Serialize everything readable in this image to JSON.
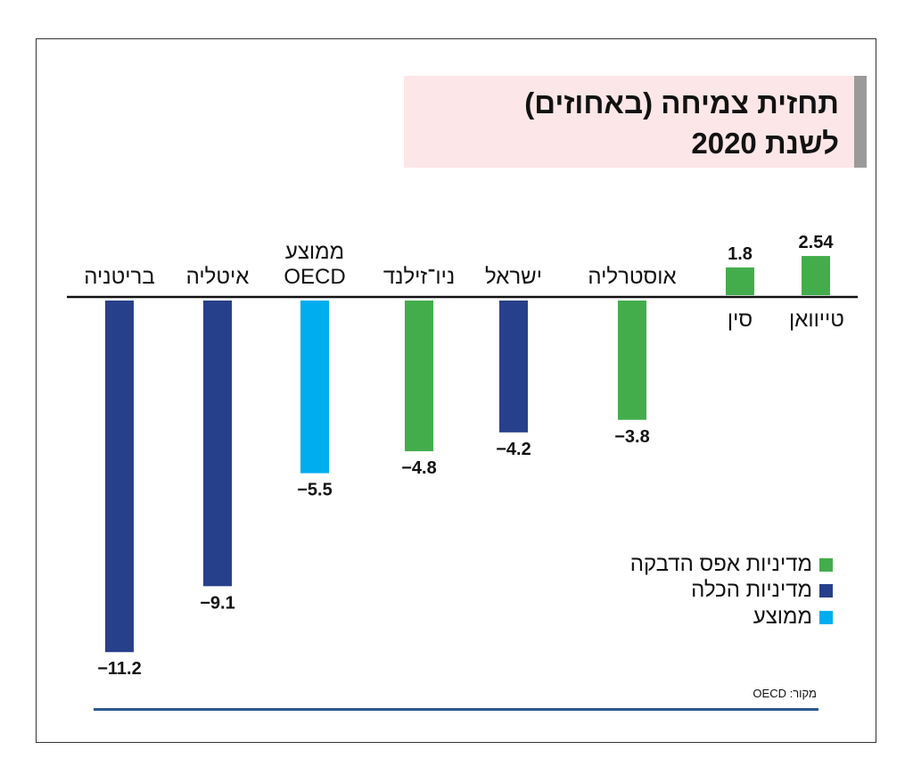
{
  "title": {
    "line1": "תחזית צמיחה (באחוזים)",
    "line2": "לשנת 2020"
  },
  "source": "מקור: OECD",
  "colors": {
    "zero_lockdown": "#43ad4b",
    "full_lockdown": "#27408b",
    "average": "#00aeef"
  },
  "legend": [
    {
      "label": "מדיניות אפס הדבקה",
      "color": "#43ad4b"
    },
    {
      "label": "מדיניות הכלה",
      "color": "#27408b"
    },
    {
      "label": "ממוצע",
      "color": "#00aeef"
    }
  ],
  "chart_data": {
    "type": "bar",
    "title": "תחזית צמיחה (באחוזים) לשנת 2020",
    "categories": [
      "בריטניה",
      "איטליה",
      "ממוצע OECD",
      "ניו־זילנד",
      "ישראל",
      "אוסטרליה",
      "סין",
      "טייוואן"
    ],
    "category_lines": [
      [
        "בריטניה"
      ],
      [
        "איטליה"
      ],
      [
        "ממוצע",
        "OECD"
      ],
      [
        "ניו־זילנד"
      ],
      [
        "ישראל"
      ],
      [
        "אוסטרליה"
      ],
      [
        "סין"
      ],
      [
        "טייוואן"
      ]
    ],
    "values": [
      -11.2,
      -9.1,
      -5.5,
      -4.8,
      -4.2,
      -3.8,
      1.8,
      2.54
    ],
    "value_labels": [
      "−11.2",
      "−9.1",
      "−5.5",
      "−4.8",
      "−4.2",
      "−3.8",
      "1.8",
      "2.54"
    ],
    "groups": [
      "full_lockdown",
      "full_lockdown",
      "average",
      "zero_lockdown",
      "full_lockdown",
      "zero_lockdown",
      "zero_lockdown",
      "zero_lockdown"
    ],
    "ylim": [
      -11.2,
      2.54
    ],
    "grid": false,
    "legend_position": "bottom-right"
  }
}
